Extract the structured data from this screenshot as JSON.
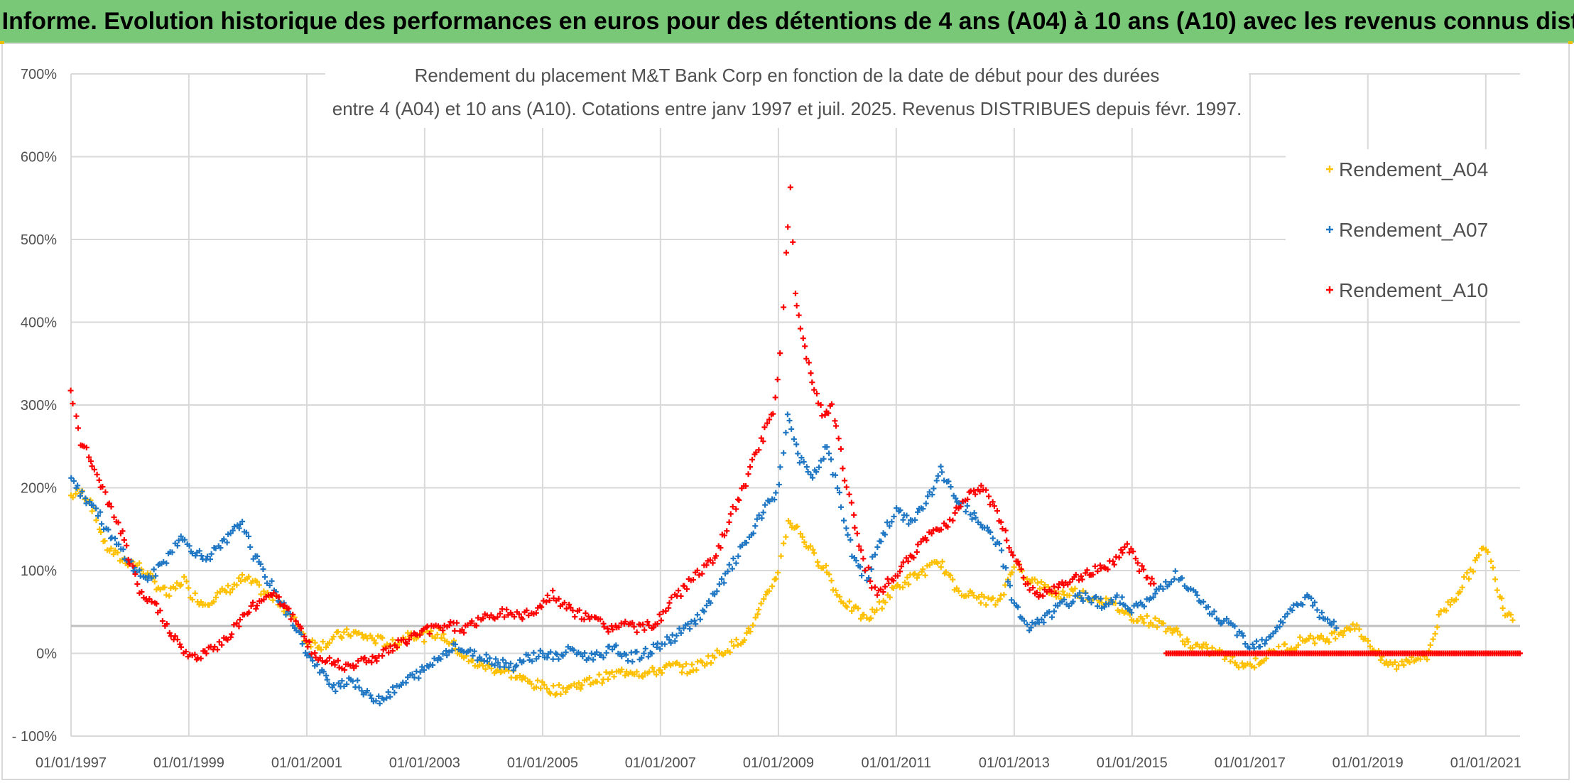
{
  "banner": {
    "text": "ADAM Informe. Evolution historique des performances en euros pour des détentions de 4 ans (A04) à 10 ans (A10) avec les revenus connus distribués"
  },
  "colors": {
    "banner_bg": "#78c878",
    "A04": "#ffc000",
    "A07": "#1f77c4",
    "A10": "#ff0000",
    "grid": "#d9d9d9",
    "reference_line": "#bfbfbf"
  },
  "chart_data": {
    "type": "scatter",
    "title_lines": [
      "Rendement du placement M&T Bank Corp en fonction de la date de début pour des durées",
      "entre 4 (A04) et 10 ans (A10). Cotations entre janv 1997 et juil. 2025. Revenus DISTRIBUES depuis févr. 1997."
    ],
    "marker": "+",
    "x_ticks": [
      "01/01/1997",
      "01/01/1999",
      "01/01/2001",
      "01/01/2003",
      "01/01/2005",
      "01/01/2007",
      "01/01/2009",
      "01/01/2011",
      "01/01/2013",
      "01/01/2015",
      "01/01/2017",
      "01/01/2019",
      "01/01/2021"
    ],
    "x_range": [
      "1997-01-01",
      "2021-08-01"
    ],
    "y_ticks": [
      "700%",
      "600%",
      "500%",
      "400%",
      "300%",
      "200%",
      "100%",
      "0%",
      "- 100%"
    ],
    "y_range": [
      -100,
      700
    ],
    "y_unit": "%",
    "reference_line_y": 33,
    "grid": true,
    "legend_position": "top-right",
    "series": [
      {
        "name": "Rendement_A04",
        "color": "#ffc000",
        "points": [
          [
            "1997-01-01",
            190
          ],
          [
            "1997-03-01",
            195
          ],
          [
            "1997-05-01",
            185
          ],
          [
            "1997-08-01",
            130
          ],
          [
            "1997-11-01",
            115
          ],
          [
            "1998-01-01",
            110
          ],
          [
            "1998-03-01",
            105
          ],
          [
            "1998-06-01",
            85
          ],
          [
            "1998-09-01",
            70
          ],
          [
            "1998-12-01",
            90
          ],
          [
            "1999-01-01",
            75
          ],
          [
            "1999-04-01",
            60
          ],
          [
            "1999-07-01",
            70
          ],
          [
            "1999-10-01",
            80
          ],
          [
            "1999-12-01",
            90
          ],
          [
            "2000-02-01",
            85
          ],
          [
            "2000-05-01",
            70
          ],
          [
            "2000-08-01",
            60
          ],
          [
            "2000-11-01",
            35
          ],
          [
            "2001-01-01",
            15
          ],
          [
            "2001-04-01",
            10
          ],
          [
            "2001-07-01",
            20
          ],
          [
            "2001-10-01",
            25
          ],
          [
            "2002-01-01",
            20
          ],
          [
            "2002-04-01",
            15
          ],
          [
            "2002-07-01",
            10
          ],
          [
            "2002-10-01",
            25
          ],
          [
            "2003-01-01",
            20
          ],
          [
            "2003-04-01",
            25
          ],
          [
            "2003-07-01",
            10
          ],
          [
            "2003-10-01",
            -10
          ],
          [
            "2004-01-01",
            -15
          ],
          [
            "2004-04-01",
            -20
          ],
          [
            "2004-07-01",
            -25
          ],
          [
            "2004-10-01",
            -35
          ],
          [
            "2005-01-01",
            -40
          ],
          [
            "2005-04-01",
            -45
          ],
          [
            "2005-07-01",
            -40
          ],
          [
            "2005-10-01",
            -35
          ],
          [
            "2006-01-01",
            -30
          ],
          [
            "2006-04-01",
            -25
          ],
          [
            "2006-07-01",
            -20
          ],
          [
            "2006-10-01",
            -25
          ],
          [
            "2007-01-01",
            -20
          ],
          [
            "2007-04-01",
            -15
          ],
          [
            "2007-07-01",
            -20
          ],
          [
            "2007-10-01",
            -10
          ],
          [
            "2008-01-01",
            0
          ],
          [
            "2008-04-01",
            10
          ],
          [
            "2008-07-01",
            25
          ],
          [
            "2008-10-01",
            60
          ],
          [
            "2009-01-01",
            100
          ],
          [
            "2009-03-01",
            160
          ],
          [
            "2009-05-01",
            150
          ],
          [
            "2009-08-01",
            120
          ],
          [
            "2009-11-01",
            100
          ],
          [
            "2010-01-01",
            70
          ],
          [
            "2010-04-01",
            55
          ],
          [
            "2010-07-01",
            40
          ],
          [
            "2010-10-01",
            60
          ],
          [
            "2011-01-01",
            80
          ],
          [
            "2011-04-01",
            90
          ],
          [
            "2011-07-01",
            100
          ],
          [
            "2011-10-01",
            110
          ],
          [
            "2012-01-01",
            80
          ],
          [
            "2012-04-01",
            70
          ],
          [
            "2012-07-01",
            65
          ],
          [
            "2012-10-01",
            60
          ],
          [
            "2013-01-01",
            110
          ],
          [
            "2013-04-01",
            90
          ],
          [
            "2013-07-01",
            80
          ],
          [
            "2013-10-01",
            70
          ],
          [
            "2014-01-01",
            75
          ],
          [
            "2014-04-01",
            70
          ],
          [
            "2014-07-01",
            65
          ],
          [
            "2014-10-01",
            55
          ],
          [
            "2015-01-01",
            45
          ],
          [
            "2015-04-01",
            40
          ],
          [
            "2015-07-01",
            35
          ],
          [
            "2015-10-01",
            25
          ],
          [
            "2016-01-01",
            10
          ],
          [
            "2016-04-01",
            5
          ],
          [
            "2016-07-01",
            0
          ],
          [
            "2016-10-01",
            -10
          ],
          [
            "2017-01-01",
            -15
          ],
          [
            "2017-04-01",
            -5
          ],
          [
            "2017-07-01",
            5
          ],
          [
            "2017-10-01",
            10
          ],
          [
            "2018-01-01",
            20
          ],
          [
            "2018-04-01",
            15
          ],
          [
            "2018-07-01",
            25
          ],
          [
            "2018-10-01",
            35
          ],
          [
            "2019-01-01",
            15
          ],
          [
            "2019-04-01",
            -10
          ],
          [
            "2019-07-01",
            -15
          ],
          [
            "2019-10-01",
            -5
          ],
          [
            "2020-01-01",
            -5
          ],
          [
            "2020-04-01",
            50
          ],
          [
            "2020-07-01",
            70
          ],
          [
            "2020-10-01",
            100
          ],
          [
            "2021-01-01",
            130
          ],
          [
            "2021-03-01",
            90
          ],
          [
            "2021-05-01",
            50
          ],
          [
            "2021-07-01",
            45
          ]
        ]
      },
      {
        "name": "Rendement_A07",
        "color": "#1f77c4",
        "points": [
          [
            "1997-01-01",
            215
          ],
          [
            "1997-03-01",
            195
          ],
          [
            "1997-06-01",
            175
          ],
          [
            "1997-09-01",
            140
          ],
          [
            "1997-12-01",
            120
          ],
          [
            "1998-02-01",
            100
          ],
          [
            "1998-05-01",
            90
          ],
          [
            "1998-08-01",
            110
          ],
          [
            "1998-11-01",
            140
          ],
          [
            "1999-01-01",
            130
          ],
          [
            "1999-04-01",
            115
          ],
          [
            "1999-07-01",
            125
          ],
          [
            "1999-10-01",
            145
          ],
          [
            "1999-12-01",
            160
          ],
          [
            "2000-02-01",
            120
          ],
          [
            "2000-05-01",
            90
          ],
          [
            "2000-08-01",
            60
          ],
          [
            "2000-11-01",
            30
          ],
          [
            "2001-01-01",
            0
          ],
          [
            "2001-04-01",
            -25
          ],
          [
            "2001-07-01",
            -40
          ],
          [
            "2001-10-01",
            -30
          ],
          [
            "2002-01-01",
            -50
          ],
          [
            "2002-04-01",
            -55
          ],
          [
            "2002-07-01",
            -45
          ],
          [
            "2002-10-01",
            -30
          ],
          [
            "2003-01-01",
            -20
          ],
          [
            "2003-04-01",
            -5
          ],
          [
            "2003-07-01",
            10
          ],
          [
            "2003-10-01",
            0
          ],
          [
            "2004-01-01",
            -5
          ],
          [
            "2004-04-01",
            -10
          ],
          [
            "2004-07-01",
            -15
          ],
          [
            "2004-10-01",
            -5
          ],
          [
            "2005-01-01",
            0
          ],
          [
            "2005-04-01",
            -5
          ],
          [
            "2005-07-01",
            5
          ],
          [
            "2005-10-01",
            -5
          ],
          [
            "2006-01-01",
            0
          ],
          [
            "2006-04-01",
            5
          ],
          [
            "2006-07-01",
            -5
          ],
          [
            "2006-10-01",
            0
          ],
          [
            "2007-01-01",
            10
          ],
          [
            "2007-04-01",
            20
          ],
          [
            "2007-07-01",
            35
          ],
          [
            "2007-10-01",
            50
          ],
          [
            "2008-01-01",
            80
          ],
          [
            "2008-04-01",
            110
          ],
          [
            "2008-07-01",
            140
          ],
          [
            "2008-10-01",
            170
          ],
          [
            "2009-01-01",
            200
          ],
          [
            "2009-03-01",
            290
          ],
          [
            "2009-05-01",
            240
          ],
          [
            "2009-08-01",
            210
          ],
          [
            "2009-11-01",
            250
          ],
          [
            "2010-01-01",
            200
          ],
          [
            "2010-04-01",
            120
          ],
          [
            "2010-07-01",
            90
          ],
          [
            "2010-10-01",
            140
          ],
          [
            "2011-01-01",
            170
          ],
          [
            "2011-04-01",
            160
          ],
          [
            "2011-07-01",
            180
          ],
          [
            "2011-10-01",
            220
          ],
          [
            "2012-01-01",
            190
          ],
          [
            "2012-04-01",
            170
          ],
          [
            "2012-07-01",
            150
          ],
          [
            "2012-10-01",
            130
          ],
          [
            "2013-01-01",
            60
          ],
          [
            "2013-04-01",
            30
          ],
          [
            "2013-07-01",
            40
          ],
          [
            "2013-10-01",
            55
          ],
          [
            "2014-01-01",
            65
          ],
          [
            "2014-04-01",
            70
          ],
          [
            "2014-07-01",
            60
          ],
          [
            "2014-10-01",
            65
          ],
          [
            "2015-01-01",
            55
          ],
          [
            "2015-04-01",
            60
          ],
          [
            "2015-07-01",
            80
          ],
          [
            "2015-10-01",
            95
          ],
          [
            "2016-01-01",
            75
          ],
          [
            "2016-04-01",
            55
          ],
          [
            "2016-07-01",
            40
          ],
          [
            "2016-10-01",
            30
          ],
          [
            "2017-01-01",
            10
          ],
          [
            "2017-04-01",
            15
          ],
          [
            "2017-07-01",
            35
          ],
          [
            "2017-10-01",
            55
          ],
          [
            "2018-01-01",
            70
          ],
          [
            "2018-04-01",
            40
          ],
          [
            "2018-07-01",
            30
          ]
        ]
      },
      {
        "name": "Rendement_A10",
        "color": "#ff0000",
        "points": [
          [
            "1997-01-01",
            315
          ],
          [
            "1997-03-01",
            255
          ],
          [
            "1997-05-01",
            235
          ],
          [
            "1997-08-01",
            190
          ],
          [
            "1997-11-01",
            150
          ],
          [
            "1998-01-01",
            110
          ],
          [
            "1998-03-01",
            70
          ],
          [
            "1998-06-01",
            60
          ],
          [
            "1998-09-01",
            30
          ],
          [
            "1998-12-01",
            0
          ],
          [
            "1999-03-01",
            -5
          ],
          [
            "1999-06-01",
            5
          ],
          [
            "1999-09-01",
            20
          ],
          [
            "1999-12-01",
            45
          ],
          [
            "2000-03-01",
            60
          ],
          [
            "2000-06-01",
            75
          ],
          [
            "2000-09-01",
            55
          ],
          [
            "2000-12-01",
            25
          ],
          [
            "2001-03-01",
            -5
          ],
          [
            "2001-06-01",
            -10
          ],
          [
            "2001-09-01",
            -15
          ],
          [
            "2001-12-01",
            -10
          ],
          [
            "2002-03-01",
            -5
          ],
          [
            "2002-06-01",
            5
          ],
          [
            "2002-09-01",
            15
          ],
          [
            "2002-12-01",
            25
          ],
          [
            "2003-03-01",
            30
          ],
          [
            "2003-06-01",
            35
          ],
          [
            "2003-09-01",
            30
          ],
          [
            "2003-12-01",
            40
          ],
          [
            "2004-03-01",
            45
          ],
          [
            "2004-06-01",
            50
          ],
          [
            "2004-09-01",
            45
          ],
          [
            "2004-12-01",
            55
          ],
          [
            "2005-03-01",
            70
          ],
          [
            "2005-06-01",
            55
          ],
          [
            "2005-09-01",
            45
          ],
          [
            "2005-12-01",
            40
          ],
          [
            "2006-03-01",
            30
          ],
          [
            "2006-06-01",
            35
          ],
          [
            "2006-09-01",
            30
          ],
          [
            "2006-12-01",
            35
          ],
          [
            "2007-03-01",
            60
          ],
          [
            "2007-06-01",
            80
          ],
          [
            "2007-09-01",
            100
          ],
          [
            "2007-12-01",
            110
          ],
          [
            "2008-03-01",
            160
          ],
          [
            "2008-06-01",
            200
          ],
          [
            "2008-09-01",
            250
          ],
          [
            "2008-12-01",
            290
          ],
          [
            "2009-01-15",
            360
          ],
          [
            "2009-02-15",
            480
          ],
          [
            "2009-03-15",
            560
          ],
          [
            "2009-04-15",
            430
          ],
          [
            "2009-06-01",
            380
          ],
          [
            "2009-08-01",
            330
          ],
          [
            "2009-10-01",
            290
          ],
          [
            "2009-12-01",
            300
          ],
          [
            "2010-03-01",
            200
          ],
          [
            "2010-06-01",
            120
          ],
          [
            "2010-09-01",
            70
          ],
          [
            "2010-12-01",
            90
          ],
          [
            "2011-03-01",
            110
          ],
          [
            "2011-06-01",
            130
          ],
          [
            "2011-09-01",
            150
          ],
          [
            "2011-12-01",
            160
          ],
          [
            "2012-03-01",
            190
          ],
          [
            "2012-06-01",
            200
          ],
          [
            "2012-09-01",
            180
          ],
          [
            "2012-12-01",
            130
          ],
          [
            "2013-03-01",
            90
          ],
          [
            "2013-06-01",
            70
          ],
          [
            "2013-09-01",
            75
          ],
          [
            "2013-12-01",
            85
          ],
          [
            "2014-03-01",
            95
          ],
          [
            "2014-06-01",
            100
          ],
          [
            "2014-09-01",
            110
          ],
          [
            "2014-12-01",
            130
          ],
          [
            "2015-03-01",
            100
          ],
          [
            "2015-06-01",
            80
          ]
        ]
      }
    ]
  }
}
